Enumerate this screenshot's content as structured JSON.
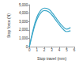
{
  "chart_data": {
    "type": "line",
    "x_label": "Stop travel (mm)",
    "y_label": "Stop force (N)",
    "x": [
      0,
      0.5,
      1,
      1.5,
      2,
      2.5,
      3,
      3.5,
      4,
      4.5,
      5,
      5.5
    ],
    "series": [
      {
        "color": "#3aa6c8",
        "values": [
          0,
          2000,
          3500,
          4300,
          4600,
          4500,
          4100,
          3500,
          2900,
          2400,
          2100,
          2300
        ]
      },
      {
        "color": "#3aa6c8",
        "values": [
          0,
          1800,
          3200,
          4000,
          4300,
          4200,
          3800,
          3200,
          2600,
          2100,
          1800,
          1900
        ]
      }
    ],
    "xlim": [
      0,
      6
    ],
    "xticks": [
      0,
      1,
      2,
      3,
      4,
      5,
      6
    ],
    "ylim": [
      0,
      5000
    ],
    "yticks": [
      0,
      1000,
      2000,
      3000,
      4000,
      5000
    ],
    "grid": false
  }
}
